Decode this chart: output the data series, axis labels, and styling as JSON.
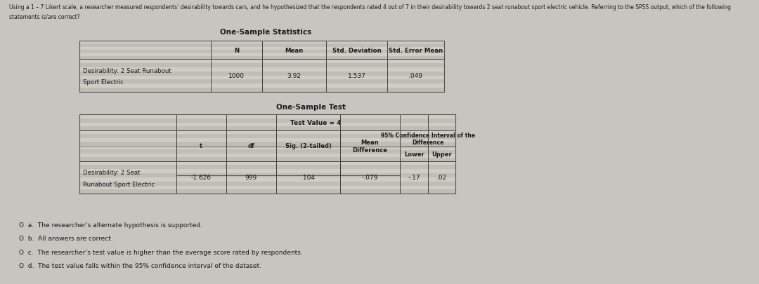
{
  "bg_color": "#c8c5c0",
  "title_line1": "Using a 1 – 7 Likert scale, a researcher measured respondents’ desirability towards cars, and he hypothesized that the respondents rated 4 out of 7 in their desirability towards 2 seat runabout sport electric vehicle. Referring to the SPSS output, which of the following",
  "title_line2": "statements is/are correct?",
  "table1_title": "One-Sample Statistics",
  "table1_headers": [
    "",
    "N",
    "Mean",
    "Std. Deviation",
    "Std. Error Mean"
  ],
  "table1_row_label_1": "Desirability: 2 Seat Runabout",
  "table1_row_label_2": "Sport Electric",
  "table1_values": [
    "1000",
    "3.92",
    "1.537",
    ".049"
  ],
  "table2_title": "One-Sample Test",
  "table2_subtitle": "Test Value = 4",
  "table2_col_headers": [
    "t",
    "df",
    "Sig. (2-tailed)",
    "Mean\nDifference",
    "Lower",
    "Upper"
  ],
  "table2_ci_label": "95% Confidence Interval of the\nDifference",
  "table2_row_label_1": "Desirability: 2 Seat",
  "table2_row_label_2": "Runabout Sport Electric",
  "table2_values": [
    "-1.626",
    "999",
    ".104",
    "-.079",
    "-.17",
    ".02"
  ],
  "options": [
    "The researcher’s alternate hypothesis is supported.",
    "All answers are correct.",
    "The researcher’s test value is higher than the average score rated by respondents.",
    "The test value falls within the 95% confidence interval of the dataset."
  ],
  "opt_labels": [
    "a.",
    "b.",
    "c.",
    "d."
  ],
  "cell_light": "#d4d0cb",
  "cell_dark": "#b8b4ae",
  "header_bg": "#a8a49e",
  "stripe_colors": [
    "#c0bcb6",
    "#d0ccc6"
  ],
  "text_color": "#1a1a1a",
  "border_color": "#555555"
}
